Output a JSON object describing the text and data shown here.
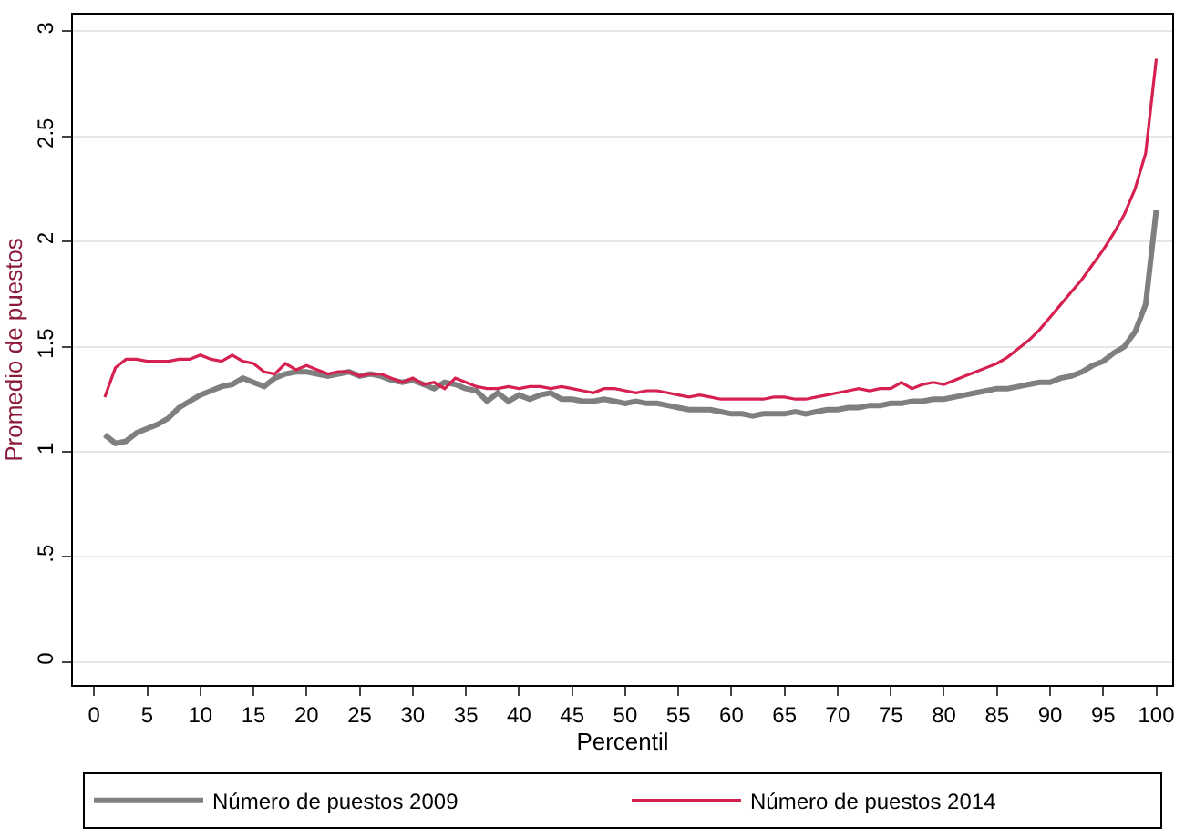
{
  "chart_data": {
    "type": "line",
    "xlabel": "Percentil",
    "ylabel": "Promedio de puestos",
    "x": [
      1,
      2,
      3,
      4,
      5,
      6,
      7,
      8,
      9,
      10,
      11,
      12,
      13,
      14,
      15,
      16,
      17,
      18,
      19,
      20,
      21,
      22,
      23,
      24,
      25,
      26,
      27,
      28,
      29,
      30,
      31,
      32,
      33,
      34,
      35,
      36,
      37,
      38,
      39,
      40,
      41,
      42,
      43,
      44,
      45,
      46,
      47,
      48,
      49,
      50,
      51,
      52,
      53,
      54,
      55,
      56,
      57,
      58,
      59,
      60,
      61,
      62,
      63,
      64,
      65,
      66,
      67,
      68,
      69,
      70,
      71,
      72,
      73,
      74,
      75,
      76,
      77,
      78,
      79,
      80,
      81,
      82,
      83,
      84,
      85,
      86,
      87,
      88,
      89,
      90,
      91,
      92,
      93,
      94,
      95,
      96,
      97,
      98,
      99,
      100
    ],
    "series": [
      {
        "name": "Número de puestos 2009",
        "color": "#7f7f7f",
        "values": [
          1.08,
          1.04,
          1.05,
          1.09,
          1.11,
          1.13,
          1.16,
          1.21,
          1.24,
          1.27,
          1.29,
          1.31,
          1.32,
          1.35,
          1.33,
          1.31,
          1.35,
          1.37,
          1.38,
          1.38,
          1.37,
          1.36,
          1.37,
          1.38,
          1.36,
          1.37,
          1.36,
          1.34,
          1.33,
          1.34,
          1.32,
          1.3,
          1.33,
          1.32,
          1.3,
          1.29,
          1.24,
          1.28,
          1.24,
          1.27,
          1.25,
          1.27,
          1.28,
          1.25,
          1.25,
          1.24,
          1.24,
          1.25,
          1.24,
          1.23,
          1.24,
          1.23,
          1.23,
          1.22,
          1.21,
          1.2,
          1.2,
          1.2,
          1.19,
          1.18,
          1.18,
          1.17,
          1.18,
          1.18,
          1.18,
          1.19,
          1.18,
          1.19,
          1.2,
          1.2,
          1.21,
          1.21,
          1.22,
          1.22,
          1.23,
          1.23,
          1.24,
          1.24,
          1.25,
          1.25,
          1.26,
          1.27,
          1.28,
          1.29,
          1.3,
          1.3,
          1.31,
          1.32,
          1.33,
          1.33,
          1.35,
          1.36,
          1.38,
          1.41,
          1.43,
          1.47,
          1.5,
          1.57,
          1.7,
          2.15
        ]
      },
      {
        "name": "Número de puestos 2014",
        "color": "#d6204f",
        "values": [
          1.26,
          1.4,
          1.44,
          1.44,
          1.43,
          1.43,
          1.43,
          1.44,
          1.44,
          1.46,
          1.44,
          1.43,
          1.46,
          1.43,
          1.42,
          1.38,
          1.37,
          1.42,
          1.39,
          1.41,
          1.39,
          1.37,
          1.38,
          1.38,
          1.36,
          1.37,
          1.37,
          1.35,
          1.33,
          1.35,
          1.32,
          1.33,
          1.3,
          1.35,
          1.33,
          1.31,
          1.3,
          1.3,
          1.31,
          1.3,
          1.31,
          1.31,
          1.3,
          1.31,
          1.3,
          1.29,
          1.28,
          1.3,
          1.3,
          1.29,
          1.28,
          1.29,
          1.29,
          1.28,
          1.27,
          1.26,
          1.27,
          1.26,
          1.25,
          1.25,
          1.25,
          1.25,
          1.25,
          1.26,
          1.26,
          1.25,
          1.25,
          1.26,
          1.27,
          1.28,
          1.29,
          1.3,
          1.29,
          1.3,
          1.3,
          1.33,
          1.3,
          1.32,
          1.33,
          1.32,
          1.34,
          1.36,
          1.38,
          1.4,
          1.42,
          1.45,
          1.49,
          1.53,
          1.58,
          1.64,
          1.7,
          1.76,
          1.82,
          1.89,
          1.96,
          2.04,
          2.13,
          2.25,
          2.42,
          2.87
        ]
      }
    ],
    "xlim": [
      -2,
      101.5
    ],
    "xticks": [
      0,
      5,
      10,
      15,
      20,
      25,
      30,
      35,
      40,
      45,
      50,
      55,
      60,
      65,
      70,
      75,
      80,
      85,
      90,
      95,
      100
    ],
    "ylim": [
      -0.11,
      3.08
    ],
    "yticks": [
      0,
      {
        "value": 0.5,
        "label": ".5"
      },
      1,
      1.5,
      2,
      2.5,
      3
    ],
    "grid": "y",
    "legend": "bottom",
    "marker": "none",
    "line_style": "solid"
  }
}
